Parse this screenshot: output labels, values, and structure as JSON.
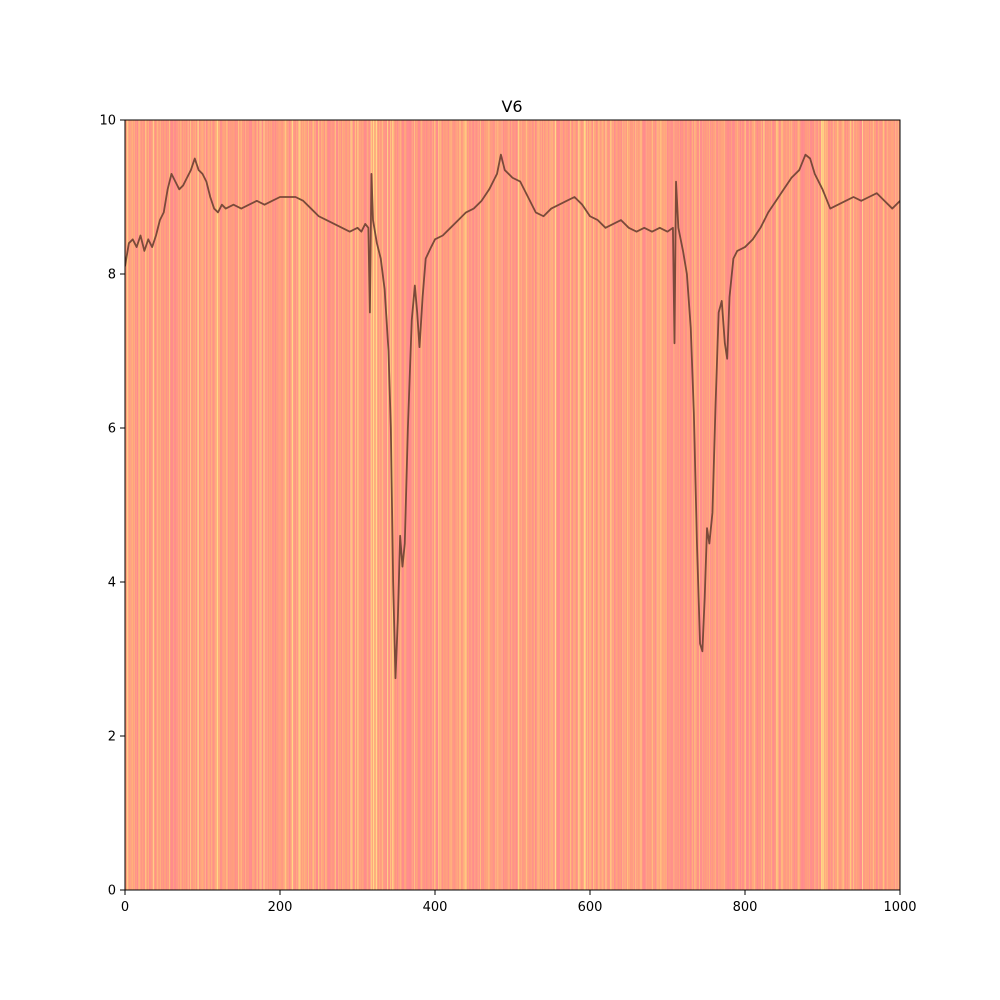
{
  "chart_data": {
    "type": "line",
    "title": "V6",
    "xlabel": "",
    "ylabel": "",
    "xlim": [
      0,
      1000
    ],
    "ylim": [
      0,
      10
    ],
    "x_ticks": [
      0,
      200,
      400,
      600,
      800,
      1000
    ],
    "y_ticks": [
      0,
      2,
      4,
      6,
      8,
      10
    ],
    "x_tick_labels": [
      "0",
      "200",
      "400",
      "600",
      "800",
      "1000"
    ],
    "y_tick_labels": [
      "0",
      "2",
      "4",
      "6",
      "8",
      "10"
    ],
    "grid": false,
    "legend": "none",
    "background": {
      "kind": "vertical-color-stripes",
      "colormap": [
        "#ff8c8c",
        "#ff9a80",
        "#ffa47c",
        "#ffb37e",
        "#ffc880",
        "#ffe38a"
      ]
    },
    "series": [
      {
        "color": "#7a4a3a",
        "points": [
          [
            0,
            8.1
          ],
          [
            5,
            8.4
          ],
          [
            10,
            8.45
          ],
          [
            15,
            8.35
          ],
          [
            20,
            8.5
          ],
          [
            25,
            8.3
          ],
          [
            30,
            8.45
          ],
          [
            35,
            8.35
          ],
          [
            40,
            8.5
          ],
          [
            45,
            8.7
          ],
          [
            50,
            8.8
          ],
          [
            55,
            9.1
          ],
          [
            60,
            9.3
          ],
          [
            65,
            9.2
          ],
          [
            70,
            9.1
          ],
          [
            75,
            9.15
          ],
          [
            80,
            9.25
          ],
          [
            85,
            9.35
          ],
          [
            90,
            9.5
          ],
          [
            95,
            9.35
          ],
          [
            100,
            9.3
          ],
          [
            105,
            9.2
          ],
          [
            110,
            9.0
          ],
          [
            115,
            8.85
          ],
          [
            120,
            8.8
          ],
          [
            125,
            8.9
          ],
          [
            130,
            8.85
          ],
          [
            140,
            8.9
          ],
          [
            150,
            8.85
          ],
          [
            160,
            8.9
          ],
          [
            170,
            8.95
          ],
          [
            180,
            8.9
          ],
          [
            190,
            8.95
          ],
          [
            200,
            9.0
          ],
          [
            210,
            9.0
          ],
          [
            220,
            9.0
          ],
          [
            230,
            8.95
          ],
          [
            240,
            8.85
          ],
          [
            250,
            8.75
          ],
          [
            260,
            8.7
          ],
          [
            270,
            8.65
          ],
          [
            280,
            8.6
          ],
          [
            290,
            8.55
          ],
          [
            300,
            8.6
          ],
          [
            305,
            8.55
          ],
          [
            310,
            8.65
          ],
          [
            314,
            8.6
          ],
          [
            316,
            7.5
          ],
          [
            318,
            9.3
          ],
          [
            320,
            8.7
          ],
          [
            325,
            8.4
          ],
          [
            330,
            8.2
          ],
          [
            335,
            7.8
          ],
          [
            340,
            7.0
          ],
          [
            343,
            6.0
          ],
          [
            346,
            4.0
          ],
          [
            349,
            2.75
          ],
          [
            352,
            3.5
          ],
          [
            355,
            4.6
          ],
          [
            358,
            4.2
          ],
          [
            361,
            4.5
          ],
          [
            365,
            6.0
          ],
          [
            370,
            7.4
          ],
          [
            374,
            7.85
          ],
          [
            377,
            7.5
          ],
          [
            380,
            7.05
          ],
          [
            384,
            7.7
          ],
          [
            388,
            8.2
          ],
          [
            395,
            8.35
          ],
          [
            400,
            8.45
          ],
          [
            410,
            8.5
          ],
          [
            420,
            8.6
          ],
          [
            430,
            8.7
          ],
          [
            440,
            8.8
          ],
          [
            450,
            8.85
          ],
          [
            460,
            8.95
          ],
          [
            470,
            9.1
          ],
          [
            480,
            9.3
          ],
          [
            485,
            9.55
          ],
          [
            490,
            9.35
          ],
          [
            500,
            9.25
          ],
          [
            510,
            9.2
          ],
          [
            520,
            9.0
          ],
          [
            530,
            8.8
          ],
          [
            540,
            8.75
          ],
          [
            550,
            8.85
          ],
          [
            560,
            8.9
          ],
          [
            570,
            8.95
          ],
          [
            580,
            9.0
          ],
          [
            590,
            8.9
          ],
          [
            600,
            8.75
          ],
          [
            610,
            8.7
          ],
          [
            620,
            8.6
          ],
          [
            630,
            8.65
          ],
          [
            640,
            8.7
          ],
          [
            650,
            8.6
          ],
          [
            660,
            8.55
          ],
          [
            670,
            8.6
          ],
          [
            680,
            8.55
          ],
          [
            690,
            8.6
          ],
          [
            700,
            8.55
          ],
          [
            707,
            8.6
          ],
          [
            709,
            7.1
          ],
          [
            711,
            9.2
          ],
          [
            714,
            8.6
          ],
          [
            720,
            8.3
          ],
          [
            725,
            8.0
          ],
          [
            730,
            7.3
          ],
          [
            734,
            6.2
          ],
          [
            738,
            4.5
          ],
          [
            742,
            3.2
          ],
          [
            745,
            3.1
          ],
          [
            748,
            3.8
          ],
          [
            751,
            4.7
          ],
          [
            754,
            4.5
          ],
          [
            758,
            4.9
          ],
          [
            762,
            6.3
          ],
          [
            766,
            7.5
          ],
          [
            770,
            7.65
          ],
          [
            774,
            7.1
          ],
          [
            777,
            6.9
          ],
          [
            780,
            7.7
          ],
          [
            785,
            8.2
          ],
          [
            790,
            8.3
          ],
          [
            800,
            8.35
          ],
          [
            810,
            8.45
          ],
          [
            820,
            8.6
          ],
          [
            830,
            8.8
          ],
          [
            840,
            8.95
          ],
          [
            850,
            9.1
          ],
          [
            860,
            9.25
          ],
          [
            870,
            9.35
          ],
          [
            878,
            9.55
          ],
          [
            884,
            9.5
          ],
          [
            890,
            9.3
          ],
          [
            900,
            9.1
          ],
          [
            910,
            8.85
          ],
          [
            920,
            8.9
          ],
          [
            930,
            8.95
          ],
          [
            940,
            9.0
          ],
          [
            950,
            8.95
          ],
          [
            960,
            9.0
          ],
          [
            970,
            9.05
          ],
          [
            980,
            8.95
          ],
          [
            990,
            8.85
          ],
          [
            1000,
            8.95
          ]
        ]
      }
    ]
  }
}
